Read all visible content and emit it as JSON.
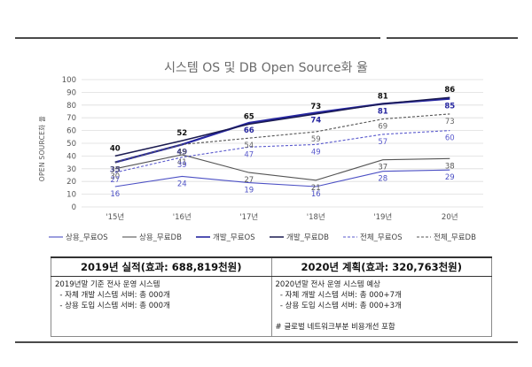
{
  "chart_data": {
    "type": "line",
    "title": "시스템 OS 및 DB Open Source화 율",
    "ylabel": "OPEN SOURCE화 율",
    "xlabel": "",
    "categories": [
      "'15년",
      "'16년",
      "'17년",
      "'18년",
      "'19년",
      "20년"
    ],
    "ylim": [
      0,
      100
    ],
    "yticks": [
      0,
      10,
      20,
      30,
      40,
      50,
      60,
      70,
      80,
      90,
      100
    ],
    "grid": true,
    "legend_position": "bottom",
    "series": [
      {
        "name": "상용_무료OS",
        "values": [
          16,
          24,
          19,
          16,
          28,
          29
        ],
        "color": "#4b4fc4",
        "style": "solid",
        "width": 1.1,
        "label_color": "#4b4fc4",
        "label_weight": "normal",
        "label_pos": "below"
      },
      {
        "name": "상용_무료DB",
        "values": [
          30,
          41,
          27,
          21,
          37,
          38
        ],
        "color": "#555555",
        "style": "solid",
        "width": 1.1,
        "label_color": "#555555",
        "label_weight": "normal",
        "label_pos": "below"
      },
      {
        "name": "개발_무료OS",
        "values": [
          35,
          49,
          66,
          74,
          81,
          85
        ],
        "color": "#2626a0",
        "style": "solid",
        "width": 2.2,
        "label_color": "#2626a0",
        "label_weight": "bold",
        "label_pos": "below"
      },
      {
        "name": "개발_무료DB",
        "values": [
          40,
          52,
          65,
          73,
          81,
          86
        ],
        "color": "#1a1a50",
        "style": "solid",
        "width": 1.5,
        "label_color": "#111111",
        "label_weight": "bold",
        "label_pos": "above"
      },
      {
        "name": "전체_무료OS",
        "values": [
          27,
          39,
          47,
          49,
          57,
          60
        ],
        "color": "#5a5acd",
        "style": "dashed",
        "width": 1.1,
        "label_color": "#5a5acd",
        "label_weight": "normal",
        "label_pos": "below"
      },
      {
        "name": "전체_무료DB",
        "values": [
          35,
          49,
          54,
          59,
          69,
          73
        ],
        "color": "#555555",
        "style": "dashed",
        "width": 1.1,
        "label_color": "#666666",
        "label_weight": "normal",
        "label_pos": "below"
      }
    ]
  },
  "table": {
    "left_header": "2019년 실적(효과: 688,819천원)",
    "right_header": "2020년 계획(효과: 320,763천원)",
    "left_lines": [
      "2019년말 기준 전사 운영 시스템",
      "  - 자체 개발 시스템 서버: 총 000개",
      "  - 상용 도입 시스템 서버: 총 000개"
    ],
    "right_lines": [
      "2020년말 전사 운영 시스템 예상",
      "  - 자체 개발 시스템 서버: 총 000+7개",
      "  - 상용 도입 시스템 서버: 총 000+3개"
    ],
    "right_note": "# 글로벌 네트워크부분 비용개선 포함"
  }
}
